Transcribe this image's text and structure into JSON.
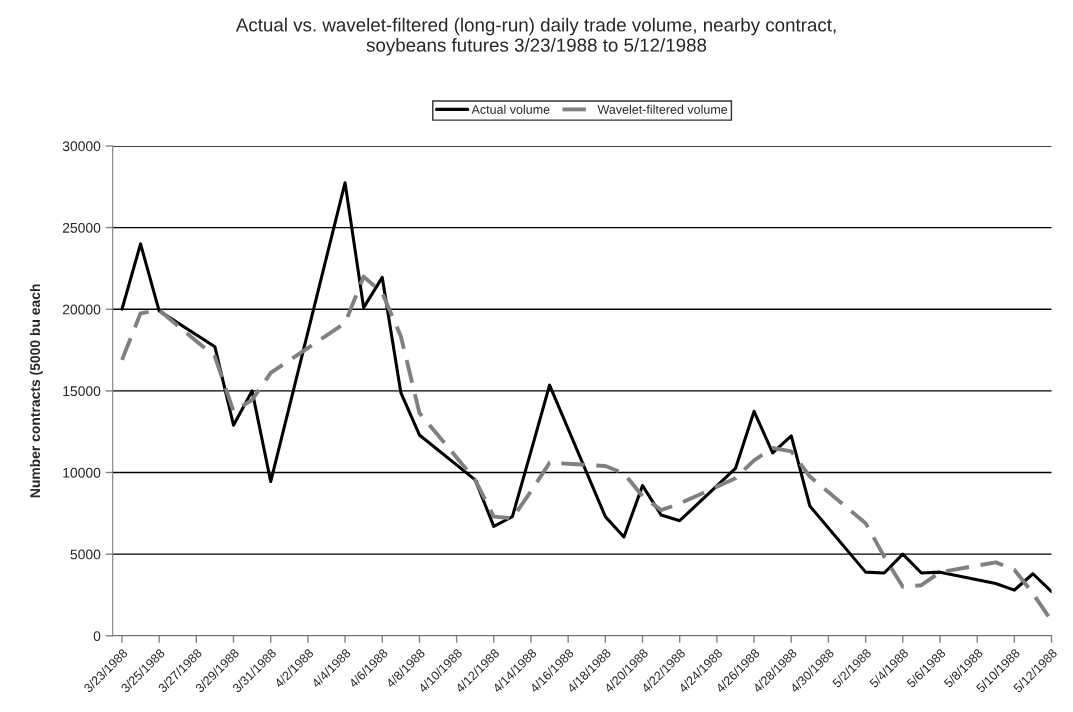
{
  "chart_data": {
    "type": "line",
    "title": "Actual vs. wavelet-filtered (long-run) daily trade volume, nearby contract,\nsoybeans futures 3/23/1988 to 5/12/1988",
    "ylabel": "Number contracts (5000 bu each",
    "x": [
      "1988-03-23",
      "1988-03-24",
      "1988-03-25",
      "1988-03-28",
      "1988-03-29",
      "1988-03-30",
      "1988-03-31",
      "1988-04-04",
      "1988-04-05",
      "1988-04-06",
      "1988-04-07",
      "1988-04-08",
      "1988-04-11",
      "1988-04-12",
      "1988-04-13",
      "1988-04-14",
      "1988-04-15",
      "1988-04-18",
      "1988-04-19",
      "1988-04-20",
      "1988-04-21",
      "1988-04-22",
      "1988-04-25",
      "1988-04-26",
      "1988-04-27",
      "1988-04-28",
      "1988-04-29",
      "1988-05-02",
      "1988-05-03",
      "1988-05-04",
      "1988-05-05",
      "1988-05-06",
      "1988-05-09",
      "1988-05-10",
      "1988-05-11",
      "1988-05-12"
    ],
    "series": [
      {
        "name": "Actual volume",
        "color": "#000000",
        "line_style": "solid",
        "values": [
          20000,
          24000,
          19900,
          17700,
          12900,
          15000,
          9450,
          27750,
          20100,
          21950,
          14900,
          12300,
          9550,
          6700,
          7300,
          11300,
          15350,
          7300,
          6050,
          9200,
          7400,
          7050,
          10250,
          13750,
          11200,
          12250,
          7950,
          3900,
          3850,
          5000,
          3850,
          3900,
          3200,
          2800,
          3800,
          2700
        ]
      },
      {
        "name": "Wavelet-filtered volume",
        "color": "#808080",
        "line_style": "dashed",
        "values": [
          16900,
          19750,
          19950,
          17100,
          13750,
          14450,
          16100,
          19150,
          22000,
          21000,
          18350,
          13650,
          9550,
          7300,
          7200,
          8850,
          10600,
          10400,
          9950,
          8550,
          7700,
          8100,
          9650,
          10750,
          11500,
          11300,
          9750,
          6900,
          4850,
          3000,
          3100,
          3900,
          4500,
          4050,
          2600,
          900
        ]
      }
    ],
    "xlim": [
      "1988-03-22T12:00",
      "1988-05-12"
    ],
    "xticks": [
      {
        "value": "1988-03-23",
        "label": "3/23/1988"
      },
      {
        "value": "1988-03-25",
        "label": "3/25/1988"
      },
      {
        "value": "1988-03-27",
        "label": "3/27/1988"
      },
      {
        "value": "1988-03-29",
        "label": "3/29/1988"
      },
      {
        "value": "1988-03-31",
        "label": "3/31/1988"
      },
      {
        "value": "1988-04-02",
        "label": "4/2/1988"
      },
      {
        "value": "1988-04-04",
        "label": "4/4/1988"
      },
      {
        "value": "1988-04-06",
        "label": "4/6/1988"
      },
      {
        "value": "1988-04-08",
        "label": "4/8/1988"
      },
      {
        "value": "1988-04-10",
        "label": "4/10/1988"
      },
      {
        "value": "1988-04-12",
        "label": "4/12/1988"
      },
      {
        "value": "1988-04-14",
        "label": "4/14/1988"
      },
      {
        "value": "1988-04-16",
        "label": "4/16/1988"
      },
      {
        "value": "1988-04-18",
        "label": "4/18/1988"
      },
      {
        "value": "1988-04-20",
        "label": "4/20/1988"
      },
      {
        "value": "1988-04-22",
        "label": "4/22/1988"
      },
      {
        "value": "1988-04-24",
        "label": "4/24/1988"
      },
      {
        "value": "1988-04-26",
        "label": "4/26/1988"
      },
      {
        "value": "1988-04-28",
        "label": "4/28/1988"
      },
      {
        "value": "1988-04-30",
        "label": "4/30/1988"
      },
      {
        "value": "1988-05-02",
        "label": "5/2/1988"
      },
      {
        "value": "1988-05-04",
        "label": "5/4/1988"
      },
      {
        "value": "1988-05-06",
        "label": "5/6/1988"
      },
      {
        "value": "1988-05-08",
        "label": "5/8/1988"
      },
      {
        "value": "1988-05-10",
        "label": "5/10/1988"
      },
      {
        "value": "1988-05-12",
        "label": "5/12/1988"
      }
    ],
    "ylim": [
      0,
      30000
    ],
    "yticks": [
      0,
      5000,
      10000,
      15000,
      20000,
      25000,
      30000
    ],
    "grid": "y",
    "legend": "top",
    "marker": "none"
  }
}
